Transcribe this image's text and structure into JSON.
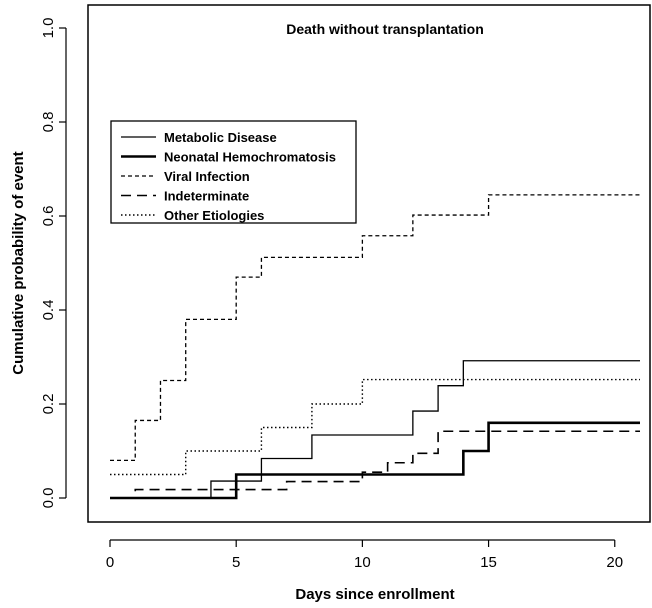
{
  "chart_data": {
    "type": "line",
    "title": "Death without transplantation",
    "xlabel": "Days since enrollment",
    "ylabel": "Cumulative probability of event",
    "xlim": [
      0,
      21
    ],
    "ylim": [
      0,
      1
    ],
    "xticks": [
      "0",
      "5",
      "10",
      "15",
      "20"
    ],
    "yticks": [
      "0.0",
      "0.2",
      "0.4",
      "0.6",
      "0.8",
      "1.0"
    ],
    "grid": false,
    "legend_position": "upper-left",
    "series": [
      {
        "name": "Metabolic Disease",
        "style": "solid-thin",
        "x": [
          0,
          4,
          5,
          6,
          8,
          12,
          13,
          14,
          21
        ],
        "y": [
          0.0,
          0.036,
          0.036,
          0.084,
          0.134,
          0.185,
          0.239,
          0.292,
          0.292
        ]
      },
      {
        "name": "Neonatal Hemochromatosis",
        "style": "solid-thick",
        "x": [
          0,
          5,
          14,
          15,
          21
        ],
        "y": [
          0.0,
          0.05,
          0.1,
          0.16,
          0.16
        ]
      },
      {
        "name": "Viral Infection",
        "style": "dashed-short",
        "x": [
          0,
          1,
          2,
          3,
          5,
          6,
          10,
          12,
          15,
          21
        ],
        "y": [
          0.08,
          0.165,
          0.25,
          0.38,
          0.47,
          0.512,
          0.558,
          0.602,
          0.645,
          0.645
        ]
      },
      {
        "name": "Indeterminate",
        "style": "dashed-long",
        "x": [
          0,
          1,
          7,
          10,
          11,
          12,
          13,
          15,
          21
        ],
        "y": [
          0.0,
          0.018,
          0.035,
          0.055,
          0.075,
          0.095,
          0.142,
          0.142,
          0.142
        ]
      },
      {
        "name": "Other Etiologies",
        "style": "dotted",
        "x": [
          0,
          3,
          6,
          8,
          10,
          21
        ],
        "y": [
          0.05,
          0.1,
          0.15,
          0.2,
          0.252,
          0.252
        ]
      }
    ]
  }
}
